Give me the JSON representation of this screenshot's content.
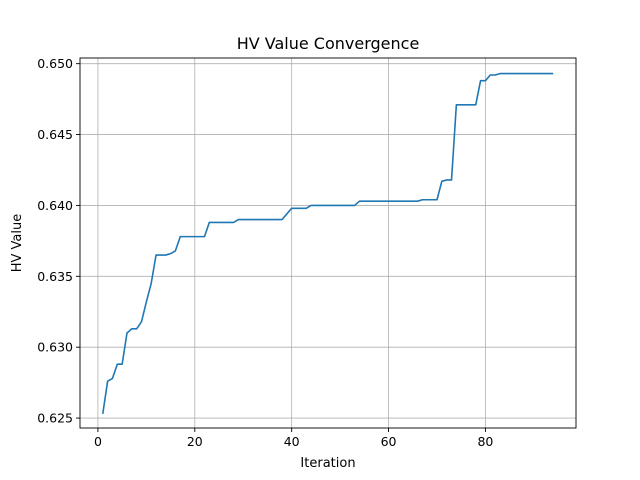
{
  "chart_data": {
    "type": "line",
    "title": "HV Value Convergence",
    "xlabel": "Iteration",
    "ylabel": "HV Value",
    "xlim": [
      -3.7,
      98.7
    ],
    "ylim": [
      0.6243,
      0.6504
    ],
    "xticks": [
      0,
      20,
      40,
      60,
      80
    ],
    "xtick_labels": [
      "0",
      "20",
      "40",
      "60",
      "80"
    ],
    "yticks": [
      0.625,
      0.63,
      0.635,
      0.64,
      0.645,
      0.65
    ],
    "ytick_labels": [
      "0.625",
      "0.630",
      "0.635",
      "0.640",
      "0.645",
      "0.650"
    ],
    "grid": true,
    "series": [
      {
        "color": "#1f77b4",
        "x": [
          1,
          2,
          3,
          4,
          5,
          6,
          7,
          8,
          9,
          10,
          11,
          12,
          13,
          14,
          15,
          16,
          17,
          18,
          19,
          20,
          21,
          22,
          23,
          24,
          25,
          26,
          27,
          28,
          29,
          30,
          31,
          32,
          33,
          34,
          35,
          36,
          37,
          38,
          39,
          40,
          41,
          42,
          43,
          44,
          45,
          46,
          47,
          48,
          49,
          50,
          51,
          52,
          53,
          54,
          55,
          56,
          57,
          58,
          59,
          60,
          61,
          62,
          63,
          64,
          65,
          66,
          67,
          68,
          69,
          70,
          71,
          72,
          73,
          74,
          75,
          76,
          77,
          78,
          79,
          80,
          81,
          82,
          83,
          84,
          85,
          86,
          87,
          88,
          89,
          90,
          91,
          92,
          93,
          94
        ],
        "y": [
          0.6253,
          0.6276,
          0.6278,
          0.6288,
          0.6288,
          0.631,
          0.6313,
          0.6313,
          0.6318,
          0.6332,
          0.6345,
          0.6365,
          0.6365,
          0.6365,
          0.6366,
          0.6368,
          0.6378,
          0.6378,
          0.6378,
          0.6378,
          0.6378,
          0.6378,
          0.6388,
          0.6388,
          0.6388,
          0.6388,
          0.6388,
          0.6388,
          0.639,
          0.639,
          0.639,
          0.639,
          0.639,
          0.639,
          0.639,
          0.639,
          0.639,
          0.639,
          0.6394,
          0.6398,
          0.6398,
          0.6398,
          0.6398,
          0.64,
          0.64,
          0.64,
          0.64,
          0.64,
          0.64,
          0.64,
          0.64,
          0.64,
          0.64,
          0.6403,
          0.6403,
          0.6403,
          0.6403,
          0.6403,
          0.6403,
          0.6403,
          0.6403,
          0.6403,
          0.6403,
          0.6403,
          0.6403,
          0.6403,
          0.6404,
          0.6404,
          0.6404,
          0.6404,
          0.6417,
          0.6418,
          0.6418,
          0.6471,
          0.6471,
          0.6471,
          0.6471,
          0.6471,
          0.6488,
          0.6488,
          0.6492,
          0.6492,
          0.6493,
          0.6493,
          0.6493,
          0.6493,
          0.6493,
          0.6493,
          0.6493,
          0.6493,
          0.6493,
          0.6493,
          0.6493,
          0.6493
        ]
      }
    ]
  }
}
